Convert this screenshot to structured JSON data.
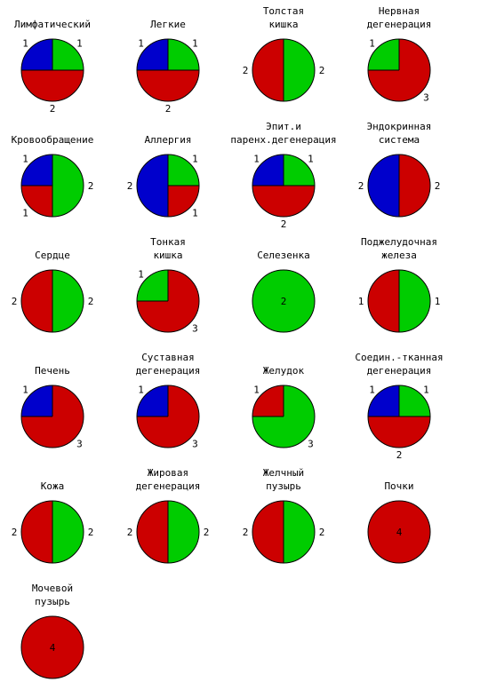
{
  "colors": {
    "blue": "#0000cc",
    "green": "#00cc00",
    "red": "#cc0000",
    "outline": "#000000",
    "background": "#ffffff"
  },
  "chart_data": [
    {
      "type": "pie",
      "title": [
        "Лимфатический"
      ],
      "slices": [
        {
          "color": "green",
          "value": 1
        },
        {
          "color": "red",
          "value": 2
        },
        {
          "color": "blue",
          "value": 1
        }
      ]
    },
    {
      "type": "pie",
      "title": [
        "Легкие"
      ],
      "slices": [
        {
          "color": "green",
          "value": 1
        },
        {
          "color": "red",
          "value": 2
        },
        {
          "color": "blue",
          "value": 1
        }
      ]
    },
    {
      "type": "pie",
      "title": [
        "Толстая",
        "кишка"
      ],
      "slices": [
        {
          "color": "green",
          "value": 2
        },
        {
          "color": "red",
          "value": 2
        }
      ]
    },
    {
      "type": "pie",
      "title": [
        "Нервная",
        "дегенерация"
      ],
      "slices": [
        {
          "color": "red",
          "value": 3
        },
        {
          "color": "green",
          "value": 1
        }
      ]
    },
    {
      "type": "pie",
      "title": [
        "Кровообращение"
      ],
      "slices": [
        {
          "color": "green",
          "value": 2
        },
        {
          "color": "red",
          "value": 1
        },
        {
          "color": "blue",
          "value": 1
        }
      ]
    },
    {
      "type": "pie",
      "title": [
        "Аллергия"
      ],
      "slices": [
        {
          "color": "green",
          "value": 1
        },
        {
          "color": "red",
          "value": 1
        },
        {
          "color": "blue",
          "value": 2
        }
      ]
    },
    {
      "type": "pie",
      "title": [
        "Эпит.и",
        "паренх.дегенерация"
      ],
      "slices": [
        {
          "color": "green",
          "value": 1
        },
        {
          "color": "red",
          "value": 2
        },
        {
          "color": "blue",
          "value": 1
        }
      ]
    },
    {
      "type": "pie",
      "title": [
        "Эндокринная",
        "система"
      ],
      "slices": [
        {
          "color": "red",
          "value": 2
        },
        {
          "color": "blue",
          "value": 2
        }
      ]
    },
    {
      "type": "pie",
      "title": [
        "Сердце"
      ],
      "slices": [
        {
          "color": "green",
          "value": 2
        },
        {
          "color": "red",
          "value": 2
        }
      ]
    },
    {
      "type": "pie",
      "title": [
        "Тонкая",
        "кишка"
      ],
      "slices": [
        {
          "color": "red",
          "value": 3
        },
        {
          "color": "green",
          "value": 1
        }
      ]
    },
    {
      "type": "pie",
      "title": [
        "Селезенка"
      ],
      "slices": [
        {
          "color": "green",
          "value": 2
        }
      ]
    },
    {
      "type": "pie",
      "title": [
        "Поджелудочная",
        "железа"
      ],
      "slices": [
        {
          "color": "green",
          "value": 1
        },
        {
          "color": "red",
          "value": 1
        }
      ]
    },
    {
      "type": "pie",
      "title": [
        "Печень"
      ],
      "slices": [
        {
          "color": "red",
          "value": 3
        },
        {
          "color": "blue",
          "value": 1
        }
      ]
    },
    {
      "type": "pie",
      "title": [
        "Суставная",
        "дегенерация"
      ],
      "slices": [
        {
          "color": "red",
          "value": 3
        },
        {
          "color": "blue",
          "value": 1
        }
      ]
    },
    {
      "type": "pie",
      "title": [
        "Желудок"
      ],
      "slices": [
        {
          "color": "green",
          "value": 3
        },
        {
          "color": "red",
          "value": 1
        }
      ]
    },
    {
      "type": "pie",
      "title": [
        "Соедин.-тканная",
        "дегенерация"
      ],
      "slices": [
        {
          "color": "green",
          "value": 1
        },
        {
          "color": "red",
          "value": 2
        },
        {
          "color": "blue",
          "value": 1
        }
      ]
    },
    {
      "type": "pie",
      "title": [
        "Кожа"
      ],
      "slices": [
        {
          "color": "green",
          "value": 2
        },
        {
          "color": "red",
          "value": 2
        }
      ]
    },
    {
      "type": "pie",
      "title": [
        "Жировая",
        "дегенерация"
      ],
      "slices": [
        {
          "color": "green",
          "value": 2
        },
        {
          "color": "red",
          "value": 2
        }
      ]
    },
    {
      "type": "pie",
      "title": [
        "Желчный",
        "пузырь"
      ],
      "slices": [
        {
          "color": "green",
          "value": 2
        },
        {
          "color": "red",
          "value": 2
        }
      ]
    },
    {
      "type": "pie",
      "title": [
        "Почки"
      ],
      "slices": [
        {
          "color": "red",
          "value": 4
        }
      ]
    },
    {
      "type": "pie",
      "title": [
        "Мочевой",
        "пузырь"
      ],
      "slices": [
        {
          "color": "red",
          "value": 4
        }
      ]
    }
  ]
}
